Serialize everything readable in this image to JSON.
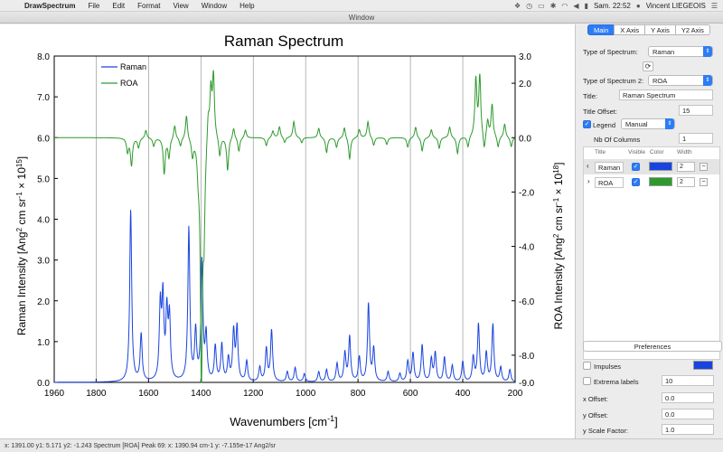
{
  "menubar": {
    "app_name": "DrawSpectrum",
    "menus": [
      "File",
      "Edit",
      "Format",
      "View",
      "Window",
      "Help"
    ],
    "clock": "Sam. 22:52",
    "user": "Vincent LIEGEOIS"
  },
  "window": {
    "title": "Window"
  },
  "chart_data": {
    "type": "line",
    "title": "Raman Spectrum",
    "xlabel": "Wavenumbers [cm-1]",
    "ylabel": "Raman Intensity [Ang2 cm sr-1 × 1015]",
    "y2label": "ROA Intensity [Ang2 cm sr-1 × 1018]",
    "xlim": [
      1960,
      200
    ],
    "x_reversed": true,
    "ylim": [
      0,
      8
    ],
    "y2lim": [
      -9,
      3
    ],
    "xticks": [
      "1960",
      "1800",
      "1600",
      "1400",
      "1200",
      "1000",
      "800",
      "600",
      "400",
      "200"
    ],
    "xtick_values": [
      1960,
      1800,
      1600,
      1400,
      1200,
      1000,
      800,
      600,
      400,
      200
    ],
    "yticks": [
      "0.0",
      "1.0",
      "2.0",
      "3.0",
      "4.0",
      "5.0",
      "6.0",
      "7.0",
      "8.0"
    ],
    "ytick_values": [
      0,
      1,
      2,
      3,
      4,
      5,
      6,
      7,
      8
    ],
    "y2ticks": [
      "3.0",
      "2.0",
      "0.0",
      "-2.0",
      "-4.0",
      "-6.0",
      "-8.0",
      "-9.0"
    ],
    "y2tick_values": [
      3,
      2,
      0,
      -2,
      -4,
      -6,
      -8,
      -9
    ],
    "grid_x": true,
    "legend_position": "top-left",
    "series": [
      {
        "name": "Raman",
        "axis": "left",
        "color": "#1a44e0",
        "peaks": [
          [
            1668,
            4.2
          ],
          [
            1628,
            1.15
          ],
          [
            1555,
            1.8
          ],
          [
            1545,
            1.95
          ],
          [
            1530,
            1.6
          ],
          [
            1520,
            1.5
          ],
          [
            1446,
            3.75
          ],
          [
            1420,
            1.2
          ],
          [
            1396,
            2.9
          ],
          [
            1380,
            1.1
          ],
          [
            1345,
            0.85
          ],
          [
            1320,
            0.9
          ],
          [
            1295,
            0.55
          ],
          [
            1275,
            1.2
          ],
          [
            1262,
            1.3
          ],
          [
            1225,
            0.5
          ],
          [
            1175,
            0.35
          ],
          [
            1150,
            0.8
          ],
          [
            1130,
            1.25
          ],
          [
            1070,
            0.25
          ],
          [
            1040,
            0.35
          ],
          [
            1005,
            0.2
          ],
          [
            950,
            0.25
          ],
          [
            920,
            0.3
          ],
          [
            880,
            0.45
          ],
          [
            850,
            0.7
          ],
          [
            832,
            1.1
          ],
          [
            795,
            0.6
          ],
          [
            760,
            1.9
          ],
          [
            740,
            0.8
          ],
          [
            685,
            0.25
          ],
          [
            640,
            0.2
          ],
          [
            610,
            0.5
          ],
          [
            590,
            0.7
          ],
          [
            555,
            0.9
          ],
          [
            520,
            0.55
          ],
          [
            505,
            0.7
          ],
          [
            470,
            0.6
          ],
          [
            440,
            0.4
          ],
          [
            400,
            0.5
          ],
          [
            360,
            0.6
          ],
          [
            340,
            1.4
          ],
          [
            310,
            0.7
          ],
          [
            285,
            1.4
          ],
          [
            255,
            0.35
          ],
          [
            220,
            0.3
          ]
        ]
      },
      {
        "name": "ROA",
        "axis": "right",
        "color": "#2e9a2e",
        "peaks": [
          [
            1680,
            -0.5
          ],
          [
            1665,
            -1.0
          ],
          [
            1638,
            -0.35
          ],
          [
            1610,
            0.3
          ],
          [
            1580,
            -0.3
          ],
          [
            1540,
            -1.3
          ],
          [
            1522,
            -0.7
          ],
          [
            1500,
            0.5
          ],
          [
            1478,
            -0.3
          ],
          [
            1455,
            0.9
          ],
          [
            1432,
            -0.6
          ],
          [
            1410,
            -0.9
          ],
          [
            1398,
            -8.9
          ],
          [
            1388,
            -3.0
          ],
          [
            1372,
            1.0
          ],
          [
            1362,
            1.8
          ],
          [
            1352,
            2.3
          ],
          [
            1328,
            -0.7
          ],
          [
            1298,
            -1.2
          ],
          [
            1275,
            0.4
          ],
          [
            1255,
            -0.5
          ],
          [
            1230,
            0.3
          ],
          [
            1150,
            -0.3
          ],
          [
            1125,
            0.25
          ],
          [
            1100,
            0.4
          ],
          [
            1080,
            -0.2
          ],
          [
            1045,
            0.6
          ],
          [
            1015,
            -0.2
          ],
          [
            950,
            0.35
          ],
          [
            920,
            -0.55
          ],
          [
            882,
            -0.35
          ],
          [
            852,
            0.4
          ],
          [
            832,
            -0.8
          ],
          [
            795,
            0.3
          ],
          [
            762,
            0.6
          ],
          [
            740,
            -0.3
          ],
          [
            690,
            -0.25
          ],
          [
            610,
            -0.35
          ],
          [
            580,
            0.4
          ],
          [
            555,
            -0.5
          ],
          [
            520,
            0.3
          ],
          [
            490,
            -0.4
          ],
          [
            450,
            0.4
          ],
          [
            420,
            -0.6
          ],
          [
            380,
            -0.4
          ],
          [
            350,
            2.1
          ],
          [
            335,
            2.2
          ],
          [
            318,
            -0.6
          ],
          [
            305,
            0.6
          ],
          [
            288,
            1.2
          ],
          [
            265,
            -0.4
          ],
          [
            240,
            0.5
          ],
          [
            215,
            -0.35
          ]
        ]
      }
    ]
  },
  "panel": {
    "tabs": [
      "Main",
      "X Axis",
      "Y Axis",
      "Y2 Axis"
    ],
    "type_of_spectrum_label": "Type of Spectrum:",
    "type_of_spectrum_value": "Raman",
    "type_of_spectrum2_label": "Type of Spectrum 2:",
    "type_of_spectrum2_value": "ROA",
    "title_label": "Title:",
    "title_value": "Raman Spectrum",
    "title_offset_label": "Title Offset:",
    "title_offset_value": "15",
    "legend_label": "Legend",
    "legend_mode": "Manual",
    "nb_columns_label": "Nb Of Columns",
    "nb_columns_value": "1",
    "table_headers": [
      "Title",
      "Visible",
      "Color",
      "Width"
    ],
    "table_rows": [
      {
        "title": "Raman",
        "width": "2",
        "color": "#1a44e0"
      },
      {
        "title": "ROA",
        "width": "2",
        "color": "#2e9a2e"
      }
    ],
    "preferences_label": "Preferences",
    "impulses_label": "Impulses",
    "extrema_labels_label": "Extrema labels",
    "extrema_labels_value": "10",
    "x_offset_label": "x Offset:",
    "x_offset_value": "0.0",
    "y_offset_label": "y Offset:",
    "y_offset_value": "0.0",
    "y_scale_label": "y Scale Factor:",
    "y_scale_value": "1.0"
  },
  "status": {
    "text": "x:  1391.00   y1:   5.171   y2:  -1.243  Spectrum [ROA] Peak 69:  x:  1390.94 cm-1  y: -7.155e-17 Ang2/sr"
  }
}
